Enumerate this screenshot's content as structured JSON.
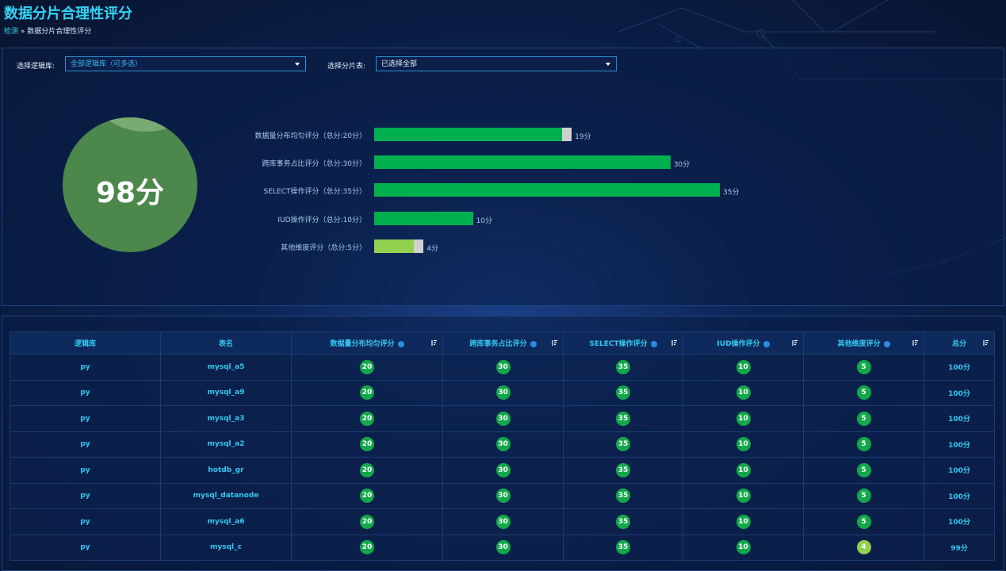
{
  "header": {
    "title": "数据分片合理性评分",
    "breadcrumb": [
      "检测",
      "数据分片合理性评分"
    ]
  },
  "filters": [
    {
      "label": "选择逻辑库:",
      "value": "全部逻辑库（可多选）"
    },
    {
      "label": "选择分片表:",
      "value": "已选择全部"
    }
  ],
  "overall_score": "98分",
  "score_bars": {
    "items": [
      {
        "label": "数据量分布均匀评分（总分:20分）",
        "value": 19,
        "max": 20,
        "value_label": "19分",
        "color": "#00b050"
      },
      {
        "label": "跨库事务占比评分（总分:30分）",
        "value": 30,
        "max": 30,
        "value_label": "30分",
        "color": "#00b050"
      },
      {
        "label": "SELECT操作评分（总分:35分）",
        "value": 35,
        "max": 35,
        "value_label": "35分",
        "color": "#00b050"
      },
      {
        "label": "IUD操作评分（总分:10分）",
        "value": 10,
        "max": 10,
        "value_label": "10分",
        "color": "#00b050"
      },
      {
        "label": "其他维度评分（总分:5分）",
        "value": 4,
        "max": 5,
        "value_label": "4分",
        "color": "#92d050"
      }
    ]
  },
  "table": {
    "columns": [
      "逻辑库",
      "表名",
      "数据量分布均匀评分",
      "跨库事务占比评分",
      "SELECT操作评分",
      "IUD操作评分",
      "其他维度评分",
      "总分"
    ],
    "badge_colors": {
      "full": "#12a84a",
      "partial": "#92d050"
    },
    "rows": [
      [
        "py",
        "mysql_a5",
        20,
        30,
        35,
        10,
        5,
        "100分"
      ],
      [
        "py",
        "mysql_a9",
        20,
        30,
        35,
        10,
        5,
        "100分"
      ],
      [
        "py",
        "mysql_a3",
        20,
        30,
        35,
        10,
        5,
        "100分"
      ],
      [
        "py",
        "mysql_a2",
        20,
        30,
        35,
        10,
        5,
        "100分"
      ],
      [
        "py",
        "hotdb_gr",
        20,
        30,
        35,
        10,
        5,
        "100分"
      ],
      [
        "py",
        "mysql_datanode",
        20,
        30,
        35,
        10,
        5,
        "100分"
      ],
      [
        "py",
        "mysql_a6",
        20,
        30,
        35,
        10,
        5,
        "100分"
      ],
      [
        "py",
        "mysql_c",
        20,
        30,
        35,
        10,
        4,
        "99分"
      ]
    ]
  }
}
